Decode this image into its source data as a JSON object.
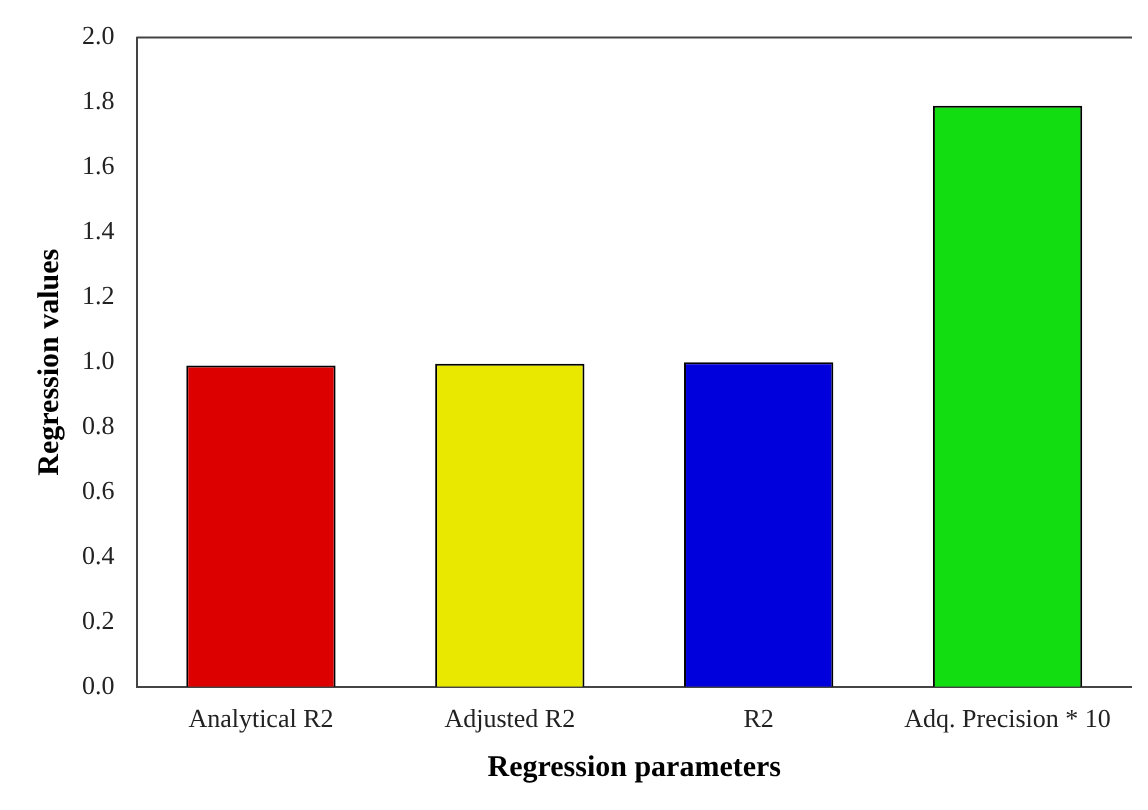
{
  "chart_data": {
    "type": "bar",
    "xlabel": "Regression parameters",
    "ylabel": "Regression values",
    "categories": [
      "Analytical R2",
      "Adjusted R2",
      "R2",
      "Adq. Precision * 10"
    ],
    "values": [
      0.99,
      0.995,
      1.0,
      1.79
    ],
    "colors": [
      "#dd0000",
      "#e8e800",
      "#0000dd",
      "#11dd11"
    ],
    "ylim": [
      0,
      2
    ],
    "yticks": [
      {
        "value": 0,
        "label": "0.0"
      },
      {
        "value": 0.2,
        "label": "0.2"
      },
      {
        "value": 0.4,
        "label": "0.4"
      },
      {
        "value": 0.6,
        "label": "0.6"
      },
      {
        "value": 0.8,
        "label": "0.8"
      },
      {
        "value": 1,
        "label": "1.0"
      },
      {
        "value": 1.2,
        "label": "1.2"
      },
      {
        "value": 1.4,
        "label": "1.4"
      },
      {
        "value": 1.6,
        "label": "1.6"
      },
      {
        "value": 1.8,
        "label": "1.8"
      },
      {
        "value": 2,
        "label": "2.0"
      }
    ],
    "grid": false
  }
}
